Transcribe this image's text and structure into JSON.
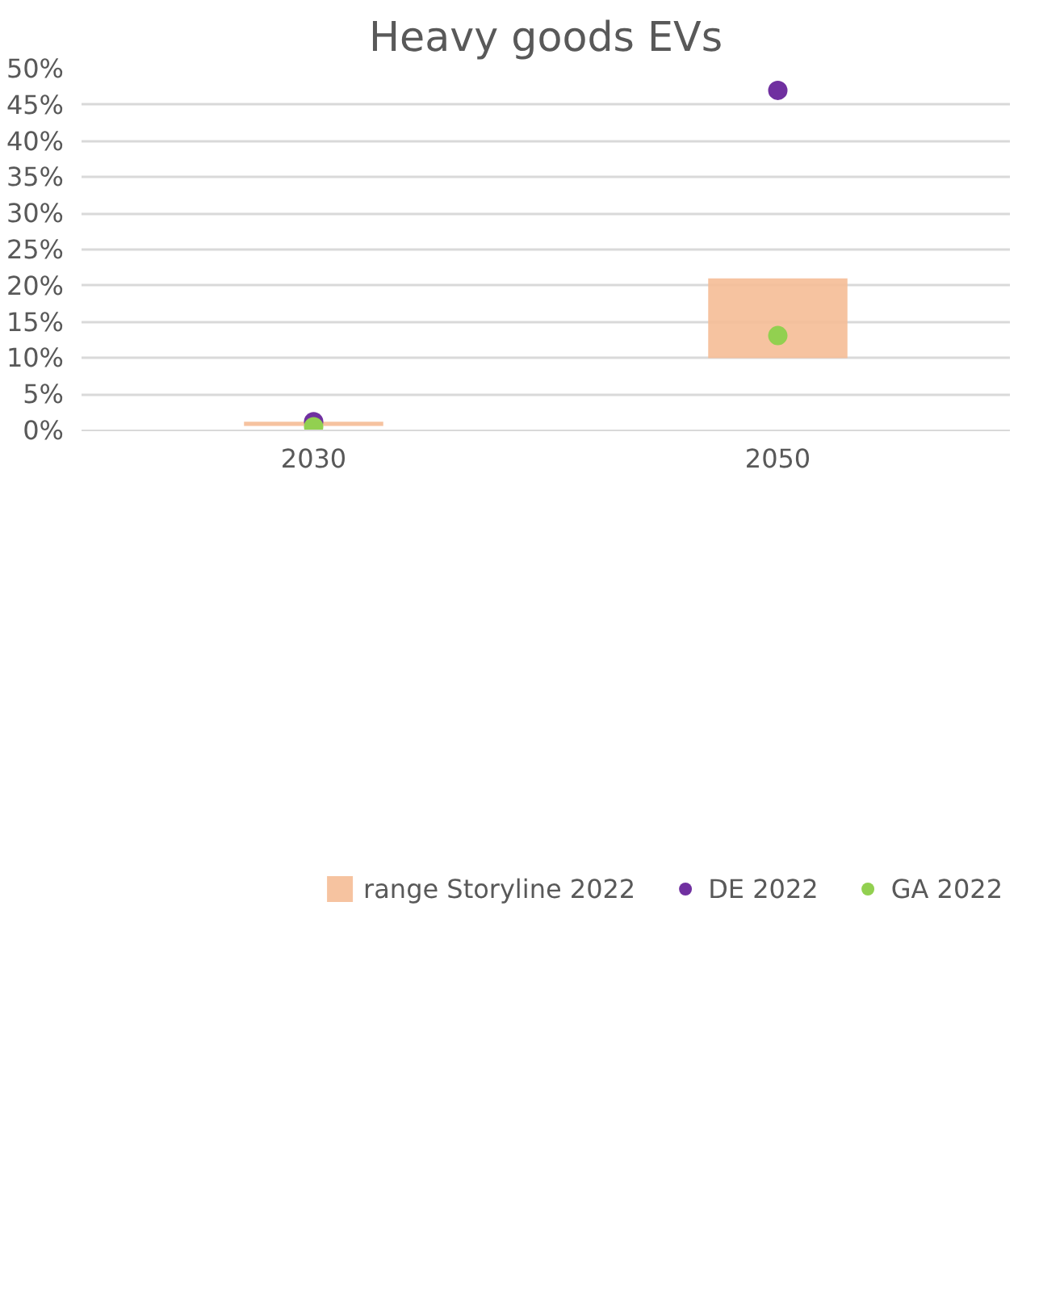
{
  "chart_data": {
    "type": "bar",
    "title": "Heavy goods EVs",
    "categories": [
      "2030",
      "2050"
    ],
    "series": [
      {
        "name": "range Storyline 2022",
        "color": "#f5bc96",
        "base": [
          0.6,
          10
        ],
        "values": [
          0.6,
          11
        ]
      },
      {
        "name": "DE 2022",
        "type": "scatter",
        "color": "#7030a0",
        "values": [
          1.2,
          47
        ]
      },
      {
        "name": "GA 2022",
        "type": "scatter",
        "color": "#92d050",
        "values": [
          0.5,
          13.1
        ]
      }
    ],
    "ylim": [
      0,
      50
    ],
    "yticks": [
      {
        "value": 0,
        "label": "0%"
      },
      {
        "value": 5,
        "label": "5%"
      },
      {
        "value": 10,
        "label": "10%"
      },
      {
        "value": 15,
        "label": "15%"
      },
      {
        "value": 20,
        "label": "20%"
      },
      {
        "value": 25,
        "label": "25%"
      },
      {
        "value": 30,
        "label": "30%"
      },
      {
        "value": 35,
        "label": "35%"
      },
      {
        "value": 40,
        "label": "40%"
      },
      {
        "value": 45,
        "label": "45%"
      },
      {
        "value": 50,
        "label": "50%"
      }
    ],
    "grid": "y",
    "legend": "bottom",
    "marker": "circle"
  }
}
